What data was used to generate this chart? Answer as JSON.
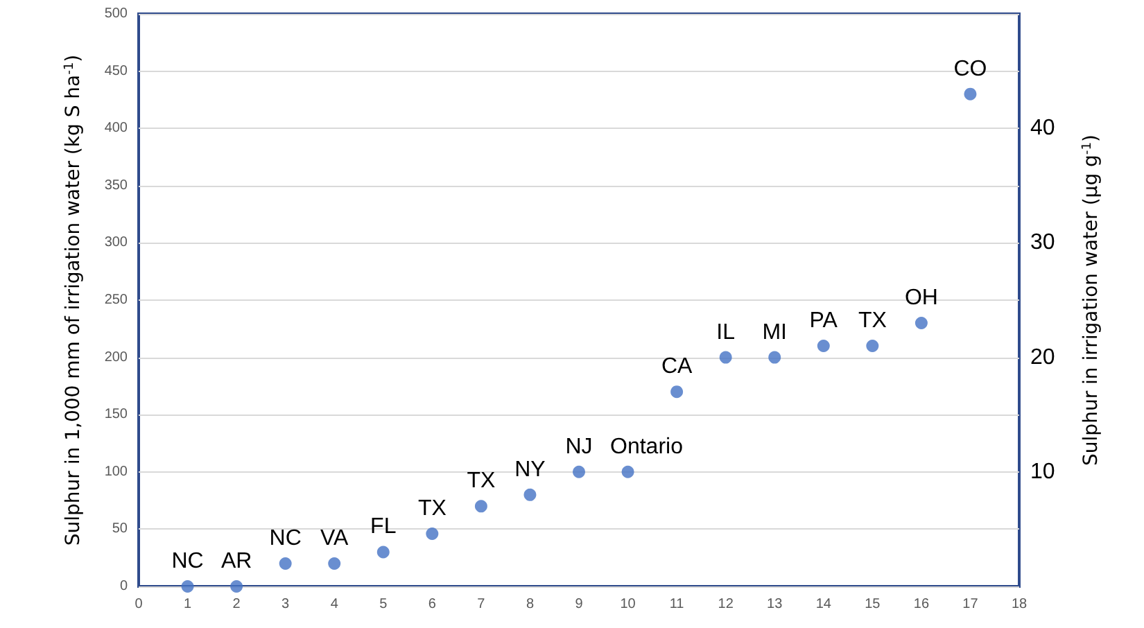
{
  "chart_data": {
    "type": "scatter",
    "ylabel": "Sulphur in 1,000 mm of irrigation water (kg S ha$^{-1}$)",
    "y2label": "Sulphur in irrigation water (µg g$^{-1}$)",
    "x": [
      1,
      2,
      3,
      4,
      5,
      6,
      7,
      8,
      9,
      10,
      11,
      12,
      13,
      14,
      15,
      16,
      17
    ],
    "series": [
      {
        "color": "#4472c4",
        "values": [
          0,
          0,
          20,
          20,
          30,
          46,
          70,
          80,
          100,
          100,
          170,
          200,
          200,
          210,
          210,
          230,
          430
        ]
      }
    ],
    "xlim": [
      0,
      18
    ],
    "xticks": [
      0,
      1,
      2,
      3,
      4,
      5,
      6,
      7,
      8,
      9,
      10,
      11,
      12,
      13,
      14,
      15,
      16,
      17,
      18
    ],
    "ylim": [
      0,
      500
    ],
    "yticks": [
      0,
      50,
      100,
      150,
      200,
      250,
      300,
      350,
      400,
      450,
      500
    ],
    "y2lim": [
      0,
      50
    ],
    "y2ticks": [
      10,
      20,
      30,
      40
    ],
    "grid": "y",
    "marker": "circle",
    "annotations": [
      {
        "text": "NC",
        "x": 1,
        "y": 0
      },
      {
        "text": "AR",
        "x": 2,
        "y": 0
      },
      {
        "text": "NC",
        "x": 3,
        "y": 20
      },
      {
        "text": "VA",
        "x": 4,
        "y": 20
      },
      {
        "text": "FL",
        "x": 5,
        "y": 30
      },
      {
        "text": "TX",
        "x": 6,
        "y": 46
      },
      {
        "text": "TX",
        "x": 7,
        "y": 70
      },
      {
        "text": "NY",
        "x": 8,
        "y": 80
      },
      {
        "text": "NJ",
        "x": 9,
        "y": 100
      },
      {
        "text": "Ontario",
        "x": 10,
        "y": 100
      },
      {
        "text": "CA",
        "x": 11,
        "y": 170
      },
      {
        "text": "IL",
        "x": 12,
        "y": 200
      },
      {
        "text": "MI",
        "x": 13,
        "y": 200
      },
      {
        "text": "PA",
        "x": 14,
        "y": 210
      },
      {
        "text": "TX",
        "x": 15,
        "y": 210
      },
      {
        "text": "OH",
        "x": 16,
        "y": 230
      },
      {
        "text": "CO",
        "x": 17,
        "y": 430
      }
    ]
  }
}
